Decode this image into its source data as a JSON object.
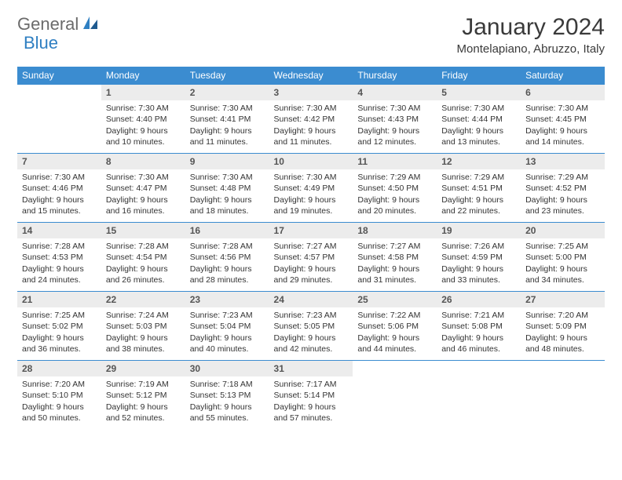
{
  "logo": {
    "word1": "General",
    "word2": "Blue"
  },
  "title": "January 2024",
  "location": "Montelapiano, Abruzzo, Italy",
  "colors": {
    "header_bg": "#3b8cd0",
    "header_fg": "#ffffff",
    "daynum_bg": "#ececec",
    "logo_gray": "#6b6b6b",
    "logo_blue": "#2f7fc2",
    "row_border": "#3b8cd0"
  },
  "day_headers": [
    "Sunday",
    "Monday",
    "Tuesday",
    "Wednesday",
    "Thursday",
    "Friday",
    "Saturday"
  ],
  "weeks": [
    [
      {
        "empty": true
      },
      {
        "n": "1",
        "sr": "Sunrise: 7:30 AM",
        "ss": "Sunset: 4:40 PM",
        "d1": "Daylight: 9 hours",
        "d2": "and 10 minutes."
      },
      {
        "n": "2",
        "sr": "Sunrise: 7:30 AM",
        "ss": "Sunset: 4:41 PM",
        "d1": "Daylight: 9 hours",
        "d2": "and 11 minutes."
      },
      {
        "n": "3",
        "sr": "Sunrise: 7:30 AM",
        "ss": "Sunset: 4:42 PM",
        "d1": "Daylight: 9 hours",
        "d2": "and 11 minutes."
      },
      {
        "n": "4",
        "sr": "Sunrise: 7:30 AM",
        "ss": "Sunset: 4:43 PM",
        "d1": "Daylight: 9 hours",
        "d2": "and 12 minutes."
      },
      {
        "n": "5",
        "sr": "Sunrise: 7:30 AM",
        "ss": "Sunset: 4:44 PM",
        "d1": "Daylight: 9 hours",
        "d2": "and 13 minutes."
      },
      {
        "n": "6",
        "sr": "Sunrise: 7:30 AM",
        "ss": "Sunset: 4:45 PM",
        "d1": "Daylight: 9 hours",
        "d2": "and 14 minutes."
      }
    ],
    [
      {
        "n": "7",
        "sr": "Sunrise: 7:30 AM",
        "ss": "Sunset: 4:46 PM",
        "d1": "Daylight: 9 hours",
        "d2": "and 15 minutes."
      },
      {
        "n": "8",
        "sr": "Sunrise: 7:30 AM",
        "ss": "Sunset: 4:47 PM",
        "d1": "Daylight: 9 hours",
        "d2": "and 16 minutes."
      },
      {
        "n": "9",
        "sr": "Sunrise: 7:30 AM",
        "ss": "Sunset: 4:48 PM",
        "d1": "Daylight: 9 hours",
        "d2": "and 18 minutes."
      },
      {
        "n": "10",
        "sr": "Sunrise: 7:30 AM",
        "ss": "Sunset: 4:49 PM",
        "d1": "Daylight: 9 hours",
        "d2": "and 19 minutes."
      },
      {
        "n": "11",
        "sr": "Sunrise: 7:29 AM",
        "ss": "Sunset: 4:50 PM",
        "d1": "Daylight: 9 hours",
        "d2": "and 20 minutes."
      },
      {
        "n": "12",
        "sr": "Sunrise: 7:29 AM",
        "ss": "Sunset: 4:51 PM",
        "d1": "Daylight: 9 hours",
        "d2": "and 22 minutes."
      },
      {
        "n": "13",
        "sr": "Sunrise: 7:29 AM",
        "ss": "Sunset: 4:52 PM",
        "d1": "Daylight: 9 hours",
        "d2": "and 23 minutes."
      }
    ],
    [
      {
        "n": "14",
        "sr": "Sunrise: 7:28 AM",
        "ss": "Sunset: 4:53 PM",
        "d1": "Daylight: 9 hours",
        "d2": "and 24 minutes."
      },
      {
        "n": "15",
        "sr": "Sunrise: 7:28 AM",
        "ss": "Sunset: 4:54 PM",
        "d1": "Daylight: 9 hours",
        "d2": "and 26 minutes."
      },
      {
        "n": "16",
        "sr": "Sunrise: 7:28 AM",
        "ss": "Sunset: 4:56 PM",
        "d1": "Daylight: 9 hours",
        "d2": "and 28 minutes."
      },
      {
        "n": "17",
        "sr": "Sunrise: 7:27 AM",
        "ss": "Sunset: 4:57 PM",
        "d1": "Daylight: 9 hours",
        "d2": "and 29 minutes."
      },
      {
        "n": "18",
        "sr": "Sunrise: 7:27 AM",
        "ss": "Sunset: 4:58 PM",
        "d1": "Daylight: 9 hours",
        "d2": "and 31 minutes."
      },
      {
        "n": "19",
        "sr": "Sunrise: 7:26 AM",
        "ss": "Sunset: 4:59 PM",
        "d1": "Daylight: 9 hours",
        "d2": "and 33 minutes."
      },
      {
        "n": "20",
        "sr": "Sunrise: 7:25 AM",
        "ss": "Sunset: 5:00 PM",
        "d1": "Daylight: 9 hours",
        "d2": "and 34 minutes."
      }
    ],
    [
      {
        "n": "21",
        "sr": "Sunrise: 7:25 AM",
        "ss": "Sunset: 5:02 PM",
        "d1": "Daylight: 9 hours",
        "d2": "and 36 minutes."
      },
      {
        "n": "22",
        "sr": "Sunrise: 7:24 AM",
        "ss": "Sunset: 5:03 PM",
        "d1": "Daylight: 9 hours",
        "d2": "and 38 minutes."
      },
      {
        "n": "23",
        "sr": "Sunrise: 7:23 AM",
        "ss": "Sunset: 5:04 PM",
        "d1": "Daylight: 9 hours",
        "d2": "and 40 minutes."
      },
      {
        "n": "24",
        "sr": "Sunrise: 7:23 AM",
        "ss": "Sunset: 5:05 PM",
        "d1": "Daylight: 9 hours",
        "d2": "and 42 minutes."
      },
      {
        "n": "25",
        "sr": "Sunrise: 7:22 AM",
        "ss": "Sunset: 5:06 PM",
        "d1": "Daylight: 9 hours",
        "d2": "and 44 minutes."
      },
      {
        "n": "26",
        "sr": "Sunrise: 7:21 AM",
        "ss": "Sunset: 5:08 PM",
        "d1": "Daylight: 9 hours",
        "d2": "and 46 minutes."
      },
      {
        "n": "27",
        "sr": "Sunrise: 7:20 AM",
        "ss": "Sunset: 5:09 PM",
        "d1": "Daylight: 9 hours",
        "d2": "and 48 minutes."
      }
    ],
    [
      {
        "n": "28",
        "sr": "Sunrise: 7:20 AM",
        "ss": "Sunset: 5:10 PM",
        "d1": "Daylight: 9 hours",
        "d2": "and 50 minutes."
      },
      {
        "n": "29",
        "sr": "Sunrise: 7:19 AM",
        "ss": "Sunset: 5:12 PM",
        "d1": "Daylight: 9 hours",
        "d2": "and 52 minutes."
      },
      {
        "n": "30",
        "sr": "Sunrise: 7:18 AM",
        "ss": "Sunset: 5:13 PM",
        "d1": "Daylight: 9 hours",
        "d2": "and 55 minutes."
      },
      {
        "n": "31",
        "sr": "Sunrise: 7:17 AM",
        "ss": "Sunset: 5:14 PM",
        "d1": "Daylight: 9 hours",
        "d2": "and 57 minutes."
      },
      {
        "empty": true
      },
      {
        "empty": true
      },
      {
        "empty": true
      }
    ]
  ]
}
